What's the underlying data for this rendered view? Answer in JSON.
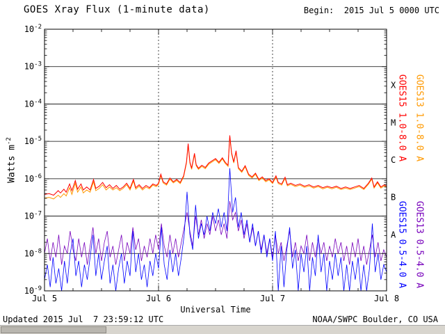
{
  "header": {
    "title": "GOES Xray Flux (1-minute data)",
    "begin_label": "Begin:  2015 Jul 5 0000 UTC"
  },
  "footer": {
    "updated": "Updated 2015 Jul  7 23:59:12 UTC",
    "credit": "NOAA/SWPC Boulder, CO USA"
  },
  "scrollbar": {
    "track_color": "#d8d5ce",
    "thumb_color": "#b9b6af"
  },
  "legend": {
    "labels": [
      {
        "text": "GOES15 1.0-8.0 A",
        "color": "#ff0000",
        "position": "inner-top"
      },
      {
        "text": "GOES13 1.0-8.0 A",
        "color": "#ff9900",
        "position": "outer-top"
      },
      {
        "text": "GOES15 0.5-4.0 A",
        "color": "#0000ff",
        "position": "inner-bottom"
      },
      {
        "text": "GOES13 0.5-4.0 A",
        "color": "#7700bb",
        "position": "outer-bottom"
      }
    ]
  },
  "chart_data": {
    "type": "line",
    "title": "GOES Xray Flux (1-minute data)",
    "xlabel": "Universal Time",
    "ylabel": "Watts m-2",
    "ylabel_base": "Watts m",
    "ylabel_exp": "-2",
    "x_range_days": [
      0,
      3
    ],
    "y_log_range": [
      -2,
      -9
    ],
    "x_ticks": [
      {
        "day": 0,
        "label": "Jul 5"
      },
      {
        "day": 1,
        "label": "Jul 6"
      },
      {
        "day": 2,
        "label": "Jul 7"
      },
      {
        "day": 3,
        "label": "Jul 8"
      }
    ],
    "x_minor_tick_step_days": 0.25,
    "y_tick_exponents": [
      -2,
      -3,
      -4,
      -5,
      -6,
      -7,
      -8,
      -9
    ],
    "hline_exponents": [
      -3,
      -4,
      -5,
      -6,
      -7,
      -8
    ],
    "vline_days": [
      1,
      2
    ],
    "class_letters": [
      {
        "label": "X",
        "log_center": -3.5
      },
      {
        "label": "M",
        "log_center": -4.5
      },
      {
        "label": "C",
        "log_center": -5.5
      },
      {
        "label": "B",
        "log_center": -6.5
      },
      {
        "label": "A",
        "log_center": -7.5
      }
    ],
    "series": [
      {
        "name": "GOES13 0.5-4.0 A",
        "color": "#7700bb",
        "width": 0.8,
        "x_even": [
          0,
          3
        ],
        "log_values": [
          -8.0,
          -7.6,
          -8.2,
          -7.7,
          -8.1,
          -7.5,
          -8.3,
          -7.8,
          -8.0,
          -7.4,
          -7.9,
          -8.2,
          -7.6,
          -8.1,
          -7.7,
          -8.3,
          -7.8,
          -7.3,
          -8.0,
          -7.6,
          -8.2,
          -7.7,
          -7.4,
          -8.1,
          -7.8,
          -8.3,
          -7.9,
          -7.5,
          -8.2,
          -7.7,
          -8.0,
          -7.3,
          -7.9,
          -7.6,
          -8.2,
          -7.8,
          -8.1,
          -7.6,
          -8.0,
          -7.5,
          -7.9,
          -7.2,
          -7.8,
          -8.1,
          -7.5,
          -8.0,
          -7.6,
          -8.1,
          -7.7,
          -7.3,
          -6.9,
          -7.4,
          -7.8,
          -7.0,
          -7.5,
          -7.1,
          -7.6,
          -7.2,
          -7.5,
          -7.0,
          -7.4,
          -7.1,
          -7.5,
          -7.2,
          -7.6,
          -6.6,
          -7.1,
          -6.9,
          -7.4,
          -7.1,
          -7.6,
          -7.2,
          -7.7,
          -7.3,
          -7.8,
          -7.4,
          -7.9,
          -7.5,
          -8.0,
          -7.6,
          -8.1,
          -7.5,
          -8.0,
          -7.7,
          -8.2,
          -7.8,
          -7.4,
          -8.1,
          -7.7,
          -8.2,
          -7.8,
          -8.0,
          -7.5,
          -8.2,
          -7.7,
          -8.1,
          -7.6,
          -8.0,
          -7.7,
          -8.2,
          -7.8,
          -8.1,
          -7.6,
          -8.0,
          -7.7,
          -8.2,
          -7.8,
          -8.3,
          -7.7,
          -8.1,
          -7.6,
          -8.2,
          -7.8,
          -8.3,
          -7.9,
          -7.5,
          -8.1,
          -7.7,
          -8.2,
          -7.9,
          -8.1
        ]
      },
      {
        "name": "GOES15 0.5-4.0 A",
        "color": "#0000ff",
        "width": 0.8,
        "x_even": [
          0,
          3
        ],
        "log_values": [
          -8.7,
          -8.3,
          -8.9,
          -8.1,
          -8.8,
          -8.4,
          -9.0,
          -8.2,
          -8.8,
          -8.0,
          -7.6,
          -8.6,
          -8.2,
          -8.9,
          -8.3,
          -8.7,
          -8.1,
          -7.5,
          -8.6,
          -8.0,
          -8.7,
          -8.2,
          -7.8,
          -8.8,
          -8.3,
          -9.0,
          -8.4,
          -8.0,
          -8.8,
          -8.2,
          -8.6,
          -7.4,
          -8.5,
          -8.0,
          -8.7,
          -8.3,
          -8.9,
          -8.2,
          -8.6,
          -8.0,
          -8.4,
          -7.3,
          -8.3,
          -8.7,
          -7.9,
          -8.5,
          -8.0,
          -8.6,
          -8.1,
          -7.5,
          -6.35,
          -7.5,
          -7.9,
          -6.7,
          -7.6,
          -7.2,
          -7.5,
          -7.0,
          -7.4,
          -6.9,
          -7.2,
          -6.8,
          -7.3,
          -6.9,
          -7.4,
          -5.72,
          -6.9,
          -6.5,
          -7.3,
          -6.9,
          -7.5,
          -7.1,
          -7.7,
          -7.2,
          -7.8,
          -7.4,
          -8.0,
          -7.5,
          -8.1,
          -7.6,
          -8.2,
          -7.4,
          -9.0,
          -7.8,
          -8.9,
          -7.9,
          -7.3,
          -8.4,
          -7.9,
          -9.0,
          -8.0,
          -8.5,
          -7.8,
          -9.0,
          -8.1,
          -8.6,
          -7.5,
          -8.5,
          -8.0,
          -9.0,
          -8.2,
          -8.7,
          -8.0,
          -8.6,
          -8.1,
          -9.0,
          -8.3,
          -9.0,
          -8.2,
          -8.7,
          -8.1,
          -9.0,
          -8.3,
          -9.0,
          -8.4,
          -7.2,
          -8.5,
          -8.0,
          -8.7,
          -8.3,
          -8.5
        ]
      },
      {
        "name": "GOES13 1.0-8.0 A",
        "color": "#ff9900",
        "width": 1,
        "points": [
          [
            0.0,
            -6.52
          ],
          [
            0.04,
            -6.5
          ],
          [
            0.08,
            -6.54
          ],
          [
            0.12,
            -6.44
          ],
          [
            0.14,
            -6.5
          ],
          [
            0.17,
            -6.4
          ],
          [
            0.19,
            -6.46
          ],
          [
            0.22,
            -6.24
          ],
          [
            0.24,
            -6.42
          ],
          [
            0.27,
            -6.12
          ],
          [
            0.29,
            -6.36
          ],
          [
            0.32,
            -6.22
          ],
          [
            0.34,
            -6.38
          ],
          [
            0.37,
            -6.3
          ],
          [
            0.4,
            -6.36
          ],
          [
            0.43,
            -6.08
          ],
          [
            0.45,
            -6.32
          ],
          [
            0.48,
            -6.26
          ],
          [
            0.51,
            -6.16
          ],
          [
            0.54,
            -6.3
          ],
          [
            0.57,
            -6.22
          ],
          [
            0.6,
            -6.3
          ],
          [
            0.63,
            -6.24
          ],
          [
            0.66,
            -6.32
          ],
          [
            0.69,
            -6.26
          ],
          [
            0.72,
            -6.16
          ],
          [
            0.75,
            -6.3
          ],
          [
            0.78,
            -6.06
          ],
          [
            0.8,
            -6.28
          ],
          [
            0.83,
            -6.2
          ],
          [
            0.86,
            -6.3
          ],
          [
            0.89,
            -6.22
          ],
          [
            0.92,
            -6.27
          ],
          [
            0.95,
            -6.17
          ],
          [
            0.98,
            -6.21
          ],
          [
            1.0,
            -6.15
          ],
          [
            1.02,
            -5.91
          ],
          [
            1.04,
            -6.11
          ],
          [
            1.07,
            -6.17
          ],
          [
            1.1,
            -6.01
          ],
          [
            1.13,
            -6.11
          ],
          [
            1.16,
            -6.05
          ],
          [
            1.19,
            -6.13
          ],
          [
            1.22,
            -5.95
          ],
          [
            1.245,
            -5.58
          ],
          [
            1.26,
            -5.09
          ],
          [
            1.275,
            -5.58
          ],
          [
            1.29,
            -5.75
          ],
          [
            1.315,
            -5.35
          ],
          [
            1.33,
            -5.65
          ],
          [
            1.35,
            -5.75
          ],
          [
            1.38,
            -5.67
          ],
          [
            1.41,
            -5.73
          ],
          [
            1.44,
            -5.61
          ],
          [
            1.47,
            -5.55
          ],
          [
            1.5,
            -5.49
          ],
          [
            1.53,
            -5.59
          ],
          [
            1.56,
            -5.47
          ],
          [
            1.585,
            -5.59
          ],
          [
            1.61,
            -5.67
          ],
          [
            1.625,
            -4.87
          ],
          [
            1.64,
            -5.33
          ],
          [
            1.66,
            -5.58
          ],
          [
            1.68,
            -5.28
          ],
          [
            1.7,
            -5.73
          ],
          [
            1.73,
            -5.83
          ],
          [
            1.76,
            -5.68
          ],
          [
            1.79,
            -5.91
          ],
          [
            1.82,
            -5.98
          ],
          [
            1.85,
            -5.88
          ],
          [
            1.88,
            -6.05
          ],
          [
            1.91,
            -5.98
          ],
          [
            1.94,
            -6.08
          ],
          [
            1.97,
            -6.03
          ],
          [
            2.0,
            -6.13
          ],
          [
            2.03,
            -5.95
          ],
          [
            2.05,
            -6.13
          ],
          [
            2.08,
            -6.17
          ],
          [
            2.11,
            -5.99
          ],
          [
            2.13,
            -6.19
          ],
          [
            2.16,
            -6.15
          ],
          [
            2.2,
            -6.21
          ],
          [
            2.24,
            -6.17
          ],
          [
            2.28,
            -6.23
          ],
          [
            2.32,
            -6.19
          ],
          [
            2.36,
            -6.25
          ],
          [
            2.4,
            -6.21
          ],
          [
            2.44,
            -6.27
          ],
          [
            2.48,
            -6.23
          ],
          [
            2.52,
            -6.27
          ],
          [
            2.56,
            -6.23
          ],
          [
            2.6,
            -6.29
          ],
          [
            2.64,
            -6.25
          ],
          [
            2.68,
            -6.29
          ],
          [
            2.72,
            -6.25
          ],
          [
            2.76,
            -6.21
          ],
          [
            2.8,
            -6.29
          ],
          [
            2.84,
            -6.15
          ],
          [
            2.87,
            -6.01
          ],
          [
            2.89,
            -6.25
          ],
          [
            2.92,
            -6.11
          ],
          [
            2.95,
            -6.25
          ],
          [
            2.98,
            -6.19
          ],
          [
            3.0,
            -6.23
          ]
        ]
      },
      {
        "name": "GOES15 1.0-8.0 A",
        "color": "#ff0000",
        "width": 1,
        "points": [
          [
            0.0,
            -6.42
          ],
          [
            0.04,
            -6.4
          ],
          [
            0.08,
            -6.44
          ],
          [
            0.12,
            -6.32
          ],
          [
            0.14,
            -6.38
          ],
          [
            0.17,
            -6.28
          ],
          [
            0.19,
            -6.36
          ],
          [
            0.22,
            -6.14
          ],
          [
            0.24,
            -6.32
          ],
          [
            0.27,
            -6.05
          ],
          [
            0.29,
            -6.28
          ],
          [
            0.32,
            -6.14
          ],
          [
            0.34,
            -6.3
          ],
          [
            0.37,
            -6.22
          ],
          [
            0.4,
            -6.3
          ],
          [
            0.43,
            -6.02
          ],
          [
            0.45,
            -6.26
          ],
          [
            0.48,
            -6.2
          ],
          [
            0.51,
            -6.1
          ],
          [
            0.54,
            -6.24
          ],
          [
            0.57,
            -6.16
          ],
          [
            0.6,
            -6.26
          ],
          [
            0.63,
            -6.18
          ],
          [
            0.66,
            -6.28
          ],
          [
            0.69,
            -6.22
          ],
          [
            0.72,
            -6.12
          ],
          [
            0.75,
            -6.26
          ],
          [
            0.78,
            -6.02
          ],
          [
            0.8,
            -6.24
          ],
          [
            0.83,
            -6.16
          ],
          [
            0.86,
            -6.26
          ],
          [
            0.89,
            -6.18
          ],
          [
            0.92,
            -6.24
          ],
          [
            0.95,
            -6.14
          ],
          [
            0.98,
            -6.18
          ],
          [
            1.0,
            -6.12
          ],
          [
            1.02,
            -5.88
          ],
          [
            1.04,
            -6.08
          ],
          [
            1.07,
            -6.14
          ],
          [
            1.1,
            -5.98
          ],
          [
            1.13,
            -6.08
          ],
          [
            1.16,
            -6.02
          ],
          [
            1.19,
            -6.1
          ],
          [
            1.22,
            -5.92
          ],
          [
            1.245,
            -5.55
          ],
          [
            1.26,
            -5.06
          ],
          [
            1.275,
            -5.55
          ],
          [
            1.29,
            -5.72
          ],
          [
            1.315,
            -5.32
          ],
          [
            1.33,
            -5.62
          ],
          [
            1.35,
            -5.72
          ],
          [
            1.38,
            -5.64
          ],
          [
            1.41,
            -5.7
          ],
          [
            1.44,
            -5.58
          ],
          [
            1.47,
            -5.52
          ],
          [
            1.5,
            -5.46
          ],
          [
            1.53,
            -5.56
          ],
          [
            1.56,
            -5.44
          ],
          [
            1.585,
            -5.56
          ],
          [
            1.61,
            -5.64
          ],
          [
            1.625,
            -4.84
          ],
          [
            1.64,
            -5.3
          ],
          [
            1.66,
            -5.55
          ],
          [
            1.68,
            -5.25
          ],
          [
            1.7,
            -5.7
          ],
          [
            1.73,
            -5.8
          ],
          [
            1.76,
            -5.65
          ],
          [
            1.79,
            -5.88
          ],
          [
            1.82,
            -5.95
          ],
          [
            1.85,
            -5.85
          ],
          [
            1.88,
            -6.02
          ],
          [
            1.91,
            -5.95
          ],
          [
            1.94,
            -6.05
          ],
          [
            1.97,
            -6.0
          ],
          [
            2.0,
            -6.1
          ],
          [
            2.03,
            -5.92
          ],
          [
            2.05,
            -6.1
          ],
          [
            2.08,
            -6.14
          ],
          [
            2.11,
            -5.96
          ],
          [
            2.13,
            -6.16
          ],
          [
            2.16,
            -6.12
          ],
          [
            2.2,
            -6.18
          ],
          [
            2.24,
            -6.14
          ],
          [
            2.28,
            -6.2
          ],
          [
            2.32,
            -6.16
          ],
          [
            2.36,
            -6.22
          ],
          [
            2.4,
            -6.18
          ],
          [
            2.44,
            -6.24
          ],
          [
            2.48,
            -6.2
          ],
          [
            2.52,
            -6.24
          ],
          [
            2.56,
            -6.2
          ],
          [
            2.6,
            -6.26
          ],
          [
            2.64,
            -6.22
          ],
          [
            2.68,
            -6.26
          ],
          [
            2.72,
            -6.22
          ],
          [
            2.76,
            -6.18
          ],
          [
            2.8,
            -6.26
          ],
          [
            2.84,
            -6.12
          ],
          [
            2.87,
            -5.98
          ],
          [
            2.89,
            -6.22
          ],
          [
            2.92,
            -6.08
          ],
          [
            2.95,
            -6.22
          ],
          [
            2.98,
            -6.16
          ],
          [
            3.0,
            -6.2
          ]
        ]
      }
    ]
  }
}
